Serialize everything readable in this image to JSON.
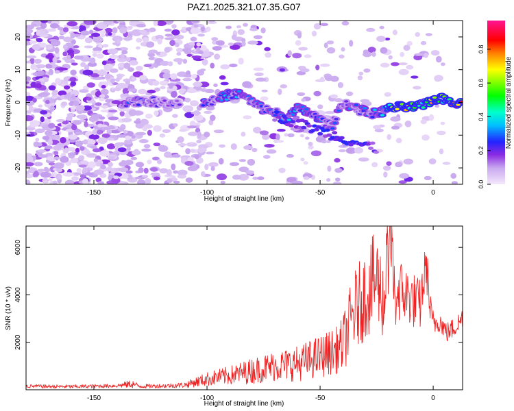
{
  "figure_title": "PAZ1.2025.321.07.35.G07",
  "chart_data": [
    {
      "type": "heatmap",
      "xlabel": "Height of straight line (km)",
      "ylabel": "Frequency (Hz)",
      "xlim": [
        -180,
        13
      ],
      "ylim": [
        -25,
        25
      ],
      "xticks": [
        -150,
        -100,
        -50,
        0
      ],
      "yticks": [
        -20,
        -10,
        0,
        10,
        20
      ],
      "colorbar": {
        "label": "Normalized spectral amplitude",
        "range": [
          0,
          0.97
        ],
        "ticks": [
          "0.0",
          "0.2",
          "0.4",
          "0.6",
          "0.8"
        ],
        "tick_values": [
          0.0,
          0.2,
          0.4,
          0.6,
          0.8
        ],
        "colors": [
          "#f4e8fb",
          "#c8a8ef",
          "#8a2be2",
          "#2323ff",
          "#00c0ff",
          "#00ffcc",
          "#00ff00",
          "#ffff00",
          "#ff8000",
          "#ff0000",
          "#ff1493"
        ]
      },
      "ridge": [
        {
          "x": -138,
          "f": 0.0,
          "a": 0.3
        },
        {
          "x": -130,
          "f": 0.5,
          "a": 0.25
        },
        {
          "x": -120,
          "f": 0.0,
          "a": 0.22
        },
        {
          "x": -105,
          "f": 0.0,
          "a": 0.25
        },
        {
          "x": -100,
          "f": 0.0,
          "a": 0.35
        },
        {
          "x": -95,
          "f": 1.0,
          "a": 0.3
        },
        {
          "x": -90,
          "f": 2.5,
          "a": 0.35
        },
        {
          "x": -85,
          "f": 2.5,
          "a": 0.32
        },
        {
          "x": -80,
          "f": 0.0,
          "a": 0.3
        },
        {
          "x": -75,
          "f": -2.0,
          "a": 0.3
        },
        {
          "x": -70,
          "f": -3.0,
          "a": 0.32
        },
        {
          "x": -65,
          "f": -5.0,
          "a": 0.35
        },
        {
          "x": -60,
          "f": -2.0,
          "a": 0.35
        },
        {
          "x": -55,
          "f": -3.0,
          "a": 0.42
        },
        {
          "x": -50,
          "f": -5.5,
          "a": 0.32
        },
        {
          "x": -45,
          "f": -7.5,
          "a": 0.25
        },
        {
          "x": -40,
          "f": 0.0,
          "a": 0.3
        },
        {
          "x": -35,
          "f": -1.5,
          "a": 0.3
        },
        {
          "x": -30,
          "f": -3.0,
          "a": 0.3
        },
        {
          "x": -25,
          "f": -3.5,
          "a": 0.35
        },
        {
          "x": -20,
          "f": -2.0,
          "a": 0.4
        },
        {
          "x": -15,
          "f": -1.5,
          "a": 0.9
        },
        {
          "x": -10,
          "f": -1.5,
          "a": 0.7
        },
        {
          "x": -5,
          "f": -1.0,
          "a": 0.6
        },
        {
          "x": 0,
          "f": 1.0,
          "a": 0.8
        },
        {
          "x": 5,
          "f": 1.0,
          "a": 0.65
        },
        {
          "x": 10,
          "f": 0.0,
          "a": 0.85
        }
      ]
    },
    {
      "type": "line",
      "xlabel": "Height of straight line (km)",
      "ylabel": "SNR (10 * v/v)",
      "xlim": [
        -180,
        13
      ],
      "ylim": [
        0,
        6900
      ],
      "xticks": [
        -150,
        -100,
        -50,
        0
      ],
      "yticks": [
        2000,
        4000,
        6000
      ],
      "color": "#ee2222",
      "series": [
        {
          "name": "SNR",
          "x": [
            -180,
            -170,
            -160,
            -150,
            -140,
            -133,
            -130,
            -120,
            -110,
            -100,
            -90,
            -80,
            -70,
            -60,
            -50,
            -42,
            -40,
            -35,
            -30,
            -25,
            -22,
            -20,
            -19,
            -17,
            -15,
            -12,
            -10,
            -6,
            -3,
            -1,
            0,
            3,
            6,
            9,
            12,
            13
          ],
          "y": [
            150,
            140,
            130,
            150,
            170,
            250,
            150,
            160,
            200,
            450,
            600,
            800,
            1000,
            1100,
            1400,
            1700,
            1900,
            3300,
            4000,
            4700,
            3800,
            5700,
            6900,
            3800,
            4200,
            4000,
            3900,
            3500,
            5300,
            3000,
            2800,
            2900,
            2400,
            2600,
            2900,
            3100
          ],
          "amp": [
            80,
            80,
            80,
            80,
            80,
            180,
            90,
            90,
            120,
            300,
            400,
            550,
            650,
            750,
            900,
            1000,
            1200,
            1700,
            1900,
            2100,
            1700,
            2000,
            1800,
            1500,
            1400,
            1300,
            1200,
            1200,
            1000,
            900,
            600,
            450,
            450,
            450,
            450,
            450
          ]
        }
      ]
    }
  ]
}
